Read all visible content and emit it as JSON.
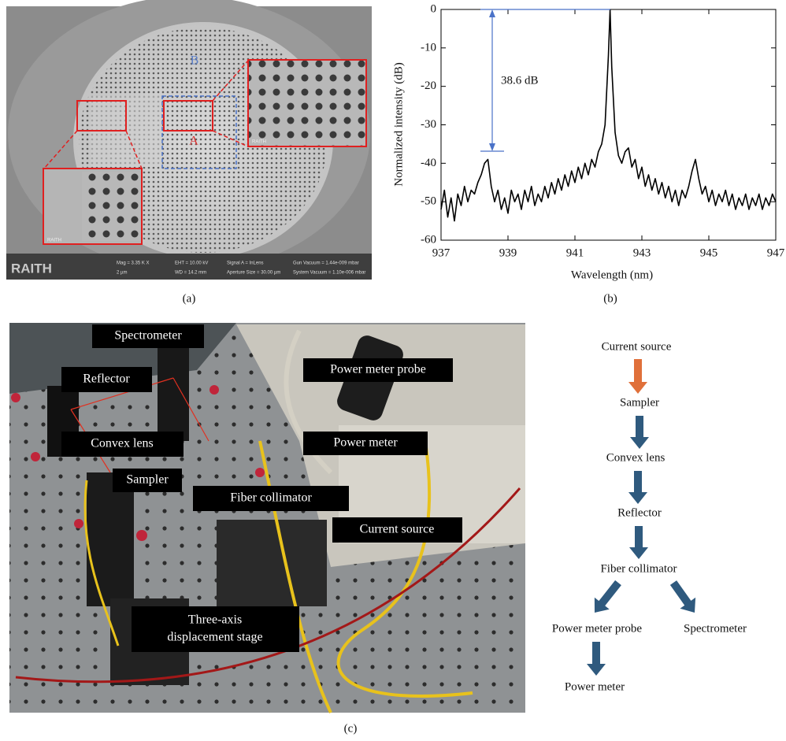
{
  "panel_a": {
    "region_labels": [
      "B",
      "A"
    ],
    "logo": "RAITH",
    "inset_logos": [
      "RAITH",
      "RAITH"
    ],
    "info": [
      "Mag = 3.35 K X",
      "2 µm",
      "EHT = 10.00 kV",
      "WD = 14.2 mm",
      "Signal A = InLens",
      "Aperture Size = 30.00 µm",
      "Gun Vacuum = 1.44e-009 mbar",
      "System Vacuum = 1.10e-006 mbar"
    ],
    "caption": "(a)"
  },
  "chart_data": {
    "type": "line",
    "color": "#000000",
    "xlabel": "Wavelength (nm)",
    "ylabel": "Normalized intensity (dB)",
    "annotation": "38.6 dB",
    "xlim": [
      937,
      947
    ],
    "xticks": [
      937,
      939,
      941,
      943,
      945,
      947
    ],
    "ylim": [
      -60,
      0
    ],
    "yticks": [
      -60,
      -50,
      -40,
      -30,
      -20,
      -10,
      0
    ],
    "x": [
      937.0,
      937.1,
      937.2,
      937.3,
      937.4,
      937.5,
      937.6,
      937.7,
      937.8,
      937.9,
      938.0,
      938.1,
      938.2,
      938.3,
      938.4,
      938.5,
      938.6,
      938.7,
      938.8,
      938.9,
      939.0,
      939.1,
      939.2,
      939.3,
      939.4,
      939.5,
      939.6,
      939.7,
      939.8,
      939.9,
      940.0,
      940.1,
      940.2,
      940.3,
      940.4,
      940.5,
      940.6,
      940.7,
      940.8,
      940.9,
      941.0,
      941.1,
      941.2,
      941.3,
      941.4,
      941.5,
      941.6,
      941.7,
      941.8,
      941.9,
      942.0,
      942.05,
      942.1,
      942.2,
      942.3,
      942.4,
      942.5,
      942.6,
      942.7,
      942.8,
      942.9,
      943.0,
      943.1,
      943.2,
      943.3,
      943.4,
      943.5,
      943.6,
      943.7,
      943.8,
      943.9,
      944.0,
      944.1,
      944.2,
      944.3,
      944.4,
      944.5,
      944.6,
      944.7,
      944.8,
      944.9,
      945.0,
      945.1,
      945.2,
      945.3,
      945.4,
      945.5,
      945.6,
      945.7,
      945.8,
      945.9,
      946.0,
      946.1,
      946.2,
      946.3,
      946.4,
      946.5,
      946.6,
      946.7,
      946.8,
      946.9,
      947.0
    ],
    "values": [
      -52,
      -47,
      -54,
      -49,
      -55,
      -48,
      -51,
      -46,
      -50,
      -47,
      -48,
      -45,
      -43,
      -40,
      -39,
      -46,
      -50,
      -47,
      -52,
      -49,
      -53,
      -47,
      -50,
      -48,
      -52,
      -47,
      -50,
      -46,
      -51,
      -48,
      -50,
      -46,
      -49,
      -45,
      -48,
      -44,
      -47,
      -43,
      -46,
      -42,
      -45,
      -41,
      -44,
      -40,
      -43,
      -39,
      -41,
      -37,
      -35,
      -30,
      -12,
      0,
      -15,
      -32,
      -38,
      -40,
      -37,
      -36,
      -41,
      -39,
      -44,
      -41,
      -46,
      -43,
      -47,
      -44,
      -48,
      -45,
      -49,
      -46,
      -50,
      -47,
      -51,
      -47,
      -49,
      -46,
      -42,
      -39,
      -44,
      -48,
      -46,
      -50,
      -47,
      -51,
      -48,
      -50,
      -47,
      -51,
      -48,
      -52,
      -49,
      -51,
      -48,
      -52,
      -49,
      -51,
      -48,
      -52,
      -49,
      -51,
      -48,
      -50
    ],
    "caption": "(b)"
  },
  "panel_c": {
    "labels": [
      "Spectrometer",
      "Reflector",
      "Power meter probe",
      "Convex lens",
      "Power meter",
      "Sampler",
      "Fiber collimator",
      "Current source"
    ],
    "stage_label": [
      "Three-axis",
      "displacement stage"
    ],
    "caption": "(c)"
  },
  "flow": {
    "nodes": [
      "Current source",
      "Sampler",
      "Convex lens",
      "Reflector",
      "Fiber collimator",
      "Power meter probe",
      "Spectrometer",
      "Power meter"
    ]
  }
}
